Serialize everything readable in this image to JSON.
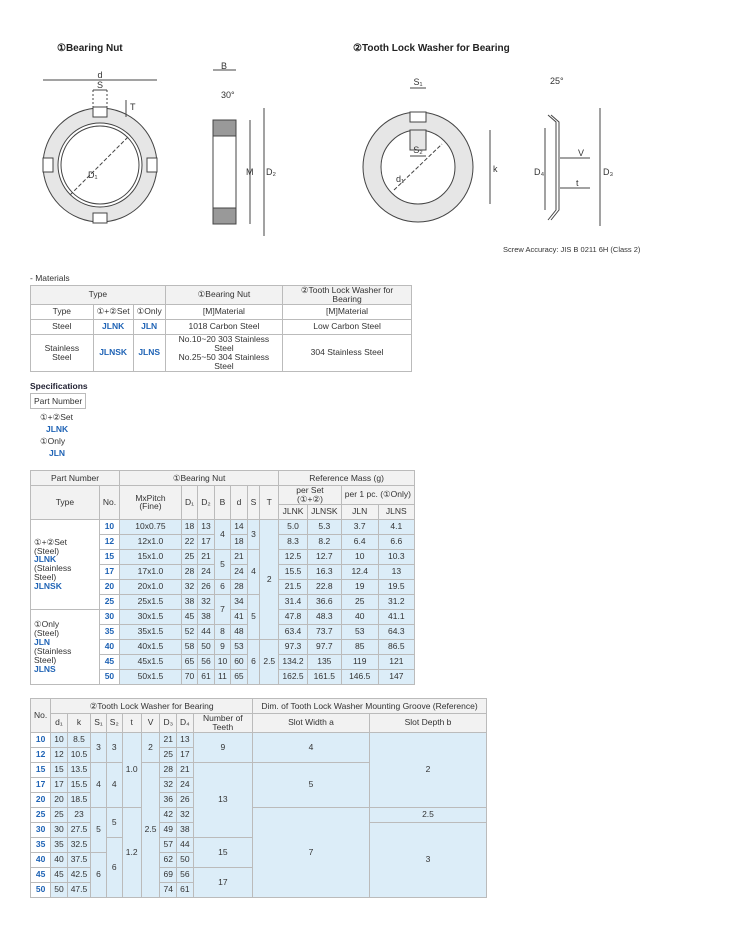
{
  "header": {
    "bearing_nut": "①Bearing Nut",
    "washer": "②Tooth Lock Washer for Bearing"
  },
  "diagram": {
    "nut_front": [
      "d",
      "S",
      "T",
      "D₁"
    ],
    "nut_side": [
      "B",
      "30°",
      "M",
      "D₂"
    ],
    "washer_front": [
      "S₁",
      "S₂",
      "d₁",
      "k"
    ],
    "washer_side": [
      "25°",
      "V",
      "t",
      "D₄",
      "D₃"
    ],
    "note": "Screw Accuracy: JIS B 0211 6H (Class 2)"
  },
  "materials": {
    "label": "- Materials",
    "header": [
      "Type",
      "①Bearing Nut",
      "②Tooth Lock Washer for Bearing",
      "Type",
      "①+②Set",
      "①Only",
      "[M]Material",
      "[M]Material"
    ],
    "rows": [
      [
        "Steel",
        "JLNK",
        "JLN",
        "1018 Carbon Steel",
        "Low Carbon Steel"
      ],
      [
        "Stainless Steel",
        "JLNSK",
        "JLNS",
        [
          "No.10~20 303 Stainless Steel",
          "No.25~50 304 Stainless Steel"
        ],
        "304 Stainless Steel"
      ]
    ]
  },
  "specifications": {
    "title": "Specifications",
    "part_number": "Part Number",
    "set": "①+②Set",
    "set_code": "JLNK",
    "only": "①Only",
    "only_code": "JLN"
  },
  "nut_table": {
    "header": {
      "part_number": "Part Number",
      "bearing_nut": "①Bearing Nut",
      "mass": "Reference Mass (g)",
      "type": "Type",
      "no": "No.",
      "pitch": "MxPitch (Fine)",
      "D1": "D₁",
      "D2": "D₂",
      "B": "B",
      "d": "d",
      "S": "S",
      "T": "T",
      "per_set": "per Set (①+②)",
      "per_pc": "per 1 pc. (①Only)",
      "jlnk": "JLNK",
      "jlnsk": "JLNSK",
      "jln": "JLN",
      "jlns": "JLNS"
    },
    "rows": [
      {
        "type": [
          "①+②Set",
          "(Steel)",
          "JLNK",
          "(Stainless Steel)",
          "JLNSK"
        ],
        "no": "10",
        "pitch": "10x0.75",
        "D1": "18",
        "D2": "13",
        "B": "4",
        "d": "14",
        "S": "3",
        "T": "2",
        "jlnk": "5.0",
        "jlnsk": "5.3",
        "jln": "3.7",
        "jlns": "4.1"
      },
      {
        "no": "12",
        "pitch": "12x1.0",
        "D1": "22",
        "D2": "17",
        "d": "18",
        "jlnk": "8.3",
        "jlnsk": "8.2",
        "jln": "6.4",
        "jlns": "6.6"
      },
      {
        "no": "15",
        "pitch": "15x1.0",
        "D1": "25",
        "D2": "21",
        "B": "5",
        "d": "21",
        "S": "4",
        "jlnk": "12.5",
        "jlnsk": "12.7",
        "jln": "10",
        "jlns": "10.3"
      },
      {
        "no": "17",
        "pitch": "17x1.0",
        "D1": "28",
        "D2": "24",
        "d": "24",
        "jlnk": "15.5",
        "jlnsk": "16.3",
        "jln": "12.4",
        "jlns": "13"
      },
      {
        "no": "20",
        "pitch": "20x1.0",
        "D1": "32",
        "D2": "26",
        "B": "6",
        "d": "28",
        "jlnk": "21.5",
        "jlnsk": "22.8",
        "jln": "19",
        "jlns": "19.5"
      },
      {
        "no": "25",
        "pitch": "25x1.5",
        "D1": "38",
        "D2": "32",
        "B": "7",
        "d": "34",
        "S": "5",
        "jlnk": "31.4",
        "jlnsk": "36.6",
        "jln": "25",
        "jlns": "31.2"
      },
      {
        "type": [
          "①Only",
          "(Steel)",
          "JLN",
          "(Stainless Steel)",
          "JLNS"
        ],
        "no": "30",
        "pitch": "30x1.5",
        "D1": "45",
        "D2": "38",
        "d": "41",
        "jlnk": "47.8",
        "jlnsk": "48.3",
        "jln": "40",
        "jlns": "41.1"
      },
      {
        "no": "35",
        "pitch": "35x1.5",
        "D1": "52",
        "D2": "44",
        "B": "8",
        "d": "48",
        "jlnk": "63.4",
        "jlnsk": "73.7",
        "jln": "53",
        "jlns": "64.3"
      },
      {
        "no": "40",
        "pitch": "40x1.5",
        "D1": "58",
        "D2": "50",
        "B": "9",
        "d": "53",
        "S": "6",
        "T": "2.5",
        "jlnk": "97.3",
        "jlnsk": "97.7",
        "jln": "85",
        "jlns": "86.5"
      },
      {
        "no": "45",
        "pitch": "45x1.5",
        "D1": "65",
        "D2": "56",
        "B": "10",
        "d": "60",
        "jlnk": "134.2",
        "jlnsk": "135",
        "jln": "119",
        "jlns": "121"
      },
      {
        "no": "50",
        "pitch": "50x1.5",
        "D1": "70",
        "D2": "61",
        "B": "11",
        "d": "65",
        "jlnk": "162.5",
        "jlnsk": "161.5",
        "jln": "146.5",
        "jlns": "147"
      }
    ]
  },
  "washer_table": {
    "header": {
      "no": "No.",
      "washer": "②Tooth Lock Washer for Bearing",
      "groove": "Dim. of Tooth Lock Washer Mounting Groove (Reference)",
      "d1": "d₁",
      "k": "k",
      "S1": "S₁",
      "S2": "S₂",
      "t": "t",
      "V": "V",
      "D3": "D₃",
      "D4": "D₄",
      "teeth": "Number of Teeth",
      "a": "Slot Width a",
      "b": "Slot Depth b"
    },
    "rows": [
      {
        "no": "10",
        "d1": "10",
        "k": "8.5",
        "S1": "3",
        "S2": "3",
        "t": "1.0",
        "V": "2",
        "D3": "21",
        "D4": "13",
        "teeth": "9",
        "a": "4",
        "b": "2"
      },
      {
        "no": "12",
        "d1": "12",
        "k": "10.5",
        "D3": "25",
        "D4": "17"
      },
      {
        "no": "15",
        "d1": "15",
        "k": "13.5",
        "S1": "4",
        "S2": "4",
        "V": "2.5",
        "D3": "28",
        "D4": "21",
        "teeth": "13",
        "a": "5"
      },
      {
        "no": "17",
        "d1": "17",
        "k": "15.5",
        "D3": "32",
        "D4": "24"
      },
      {
        "no": "20",
        "d1": "20",
        "k": "18.5",
        "D3": "36",
        "D4": "26"
      },
      {
        "no": "25",
        "d1": "25",
        "k": "23",
        "S1": "5",
        "S2": "5",
        "t": "1.2",
        "D3": "42",
        "D4": "32",
        "a": "7",
        "b": "2.5"
      },
      {
        "no": "30",
        "d1": "30",
        "k": "27.5",
        "D3": "49",
        "D4": "38",
        "b": "3"
      },
      {
        "no": "35",
        "d1": "35",
        "k": "32.5",
        "S2": "6",
        "D3": "57",
        "D4": "44",
        "teeth": "15"
      },
      {
        "no": "40",
        "d1": "40",
        "k": "37.5",
        "S1": "6",
        "D3": "62",
        "D4": "50"
      },
      {
        "no": "45",
        "d1": "45",
        "k": "42.5",
        "D3": "69",
        "D4": "56",
        "teeth": "17"
      },
      {
        "no": "50",
        "d1": "50",
        "k": "47.5",
        "D3": "74",
        "D4": "61"
      }
    ]
  }
}
